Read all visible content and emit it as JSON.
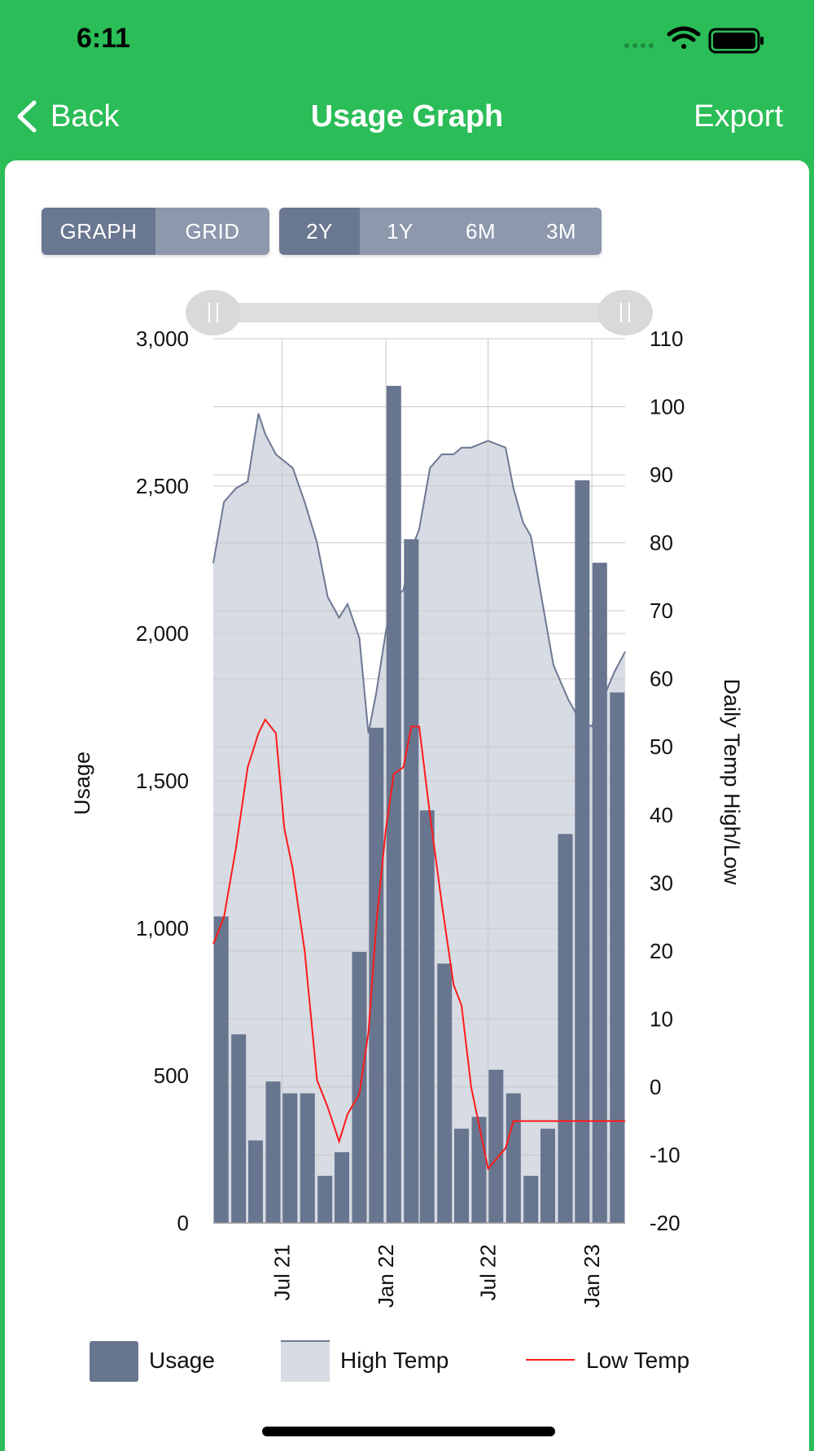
{
  "status": {
    "time": "6:11"
  },
  "nav": {
    "back_label": "Back",
    "title": "Usage Graph",
    "export_label": "Export"
  },
  "view_toggle": [
    {
      "label": "GRAPH",
      "active": true
    },
    {
      "label": "GRID",
      "active": false
    }
  ],
  "range_toggle": [
    {
      "label": "2Y",
      "active": true
    },
    {
      "label": "1Y",
      "active": false
    },
    {
      "label": "6M",
      "active": false
    },
    {
      "label": "3M",
      "active": false
    }
  ],
  "colors": {
    "header_green": "#2bbd57",
    "usage_bar": "#68758f",
    "high_temp_fill": "#d7dbe3",
    "high_temp_line": "#6c7893",
    "low_temp_line": "#ff1a1a"
  },
  "chart_data": {
    "type": "bar",
    "left_axis": {
      "label": "Usage",
      "range": [
        0,
        3000
      ],
      "ticks": [
        0,
        500,
        1000,
        1500,
        2000,
        2500,
        3000
      ],
      "tick_labels": [
        "0",
        "500",
        "1,000",
        "1,500",
        "2,000",
        "2,500",
        "3,000"
      ]
    },
    "right_axis": {
      "label": "Daily Temp High/Low",
      "range": [
        -20,
        110
      ],
      "ticks": [
        -20,
        -10,
        0,
        10,
        20,
        30,
        40,
        50,
        60,
        70,
        80,
        90,
        100,
        110
      ],
      "tick_labels": [
        "-20",
        "-10",
        "0",
        "10",
        "20",
        "30",
        "40",
        "50",
        "60",
        "70",
        "80",
        "90",
        "100",
        "110"
      ]
    },
    "x_ticks": [
      "Jul 21",
      "Jan 22",
      "Jul 22",
      "Jan 23"
    ],
    "x_tick_dates": [
      "2021-07-01",
      "2022-01-01",
      "2022-07-01",
      "2023-01-01"
    ],
    "x_range": [
      "2021-03-01",
      "2023-03-01"
    ],
    "grid": true,
    "legend_position": "bottom",
    "series": [
      {
        "name": "Usage",
        "type": "bar",
        "axis": "left",
        "x": [
          "2021-03-15",
          "2021-04-15",
          "2021-05-15",
          "2021-06-15",
          "2021-07-15",
          "2021-08-15",
          "2021-09-15",
          "2021-10-15",
          "2021-11-15",
          "2021-12-15",
          "2022-01-15",
          "2022-02-15",
          "2022-03-15",
          "2022-04-15",
          "2022-05-15",
          "2022-06-15",
          "2022-07-15",
          "2022-08-15",
          "2022-09-15",
          "2022-10-15",
          "2022-11-15",
          "2022-12-15",
          "2023-01-15",
          "2023-02-15"
        ],
        "values": [
          1040,
          640,
          280,
          480,
          440,
          440,
          160,
          240,
          920,
          1680,
          2840,
          2320,
          1400,
          880,
          320,
          360,
          520,
          440,
          160,
          320,
          1320,
          2520,
          2240,
          1800
        ]
      },
      {
        "name": "High Temp",
        "type": "area",
        "axis": "right",
        "x": [
          "2021-03-01",
          "2021-03-20",
          "2021-04-10",
          "2021-05-01",
          "2021-05-20",
          "2021-06-01",
          "2021-06-20",
          "2021-07-05",
          "2021-07-20",
          "2021-08-10",
          "2021-09-01",
          "2021-09-20",
          "2021-10-10",
          "2021-10-25",
          "2021-11-15",
          "2021-12-01",
          "2021-12-15",
          "2022-01-01",
          "2022-01-15",
          "2022-02-01",
          "2022-02-15",
          "2022-03-01",
          "2022-03-20",
          "2022-04-10",
          "2022-05-01",
          "2022-05-15",
          "2022-06-01",
          "2022-07-01",
          "2022-08-01",
          "2022-08-15",
          "2022-09-01",
          "2022-09-15",
          "2022-10-10",
          "2022-10-25",
          "2022-11-20",
          "2022-12-10",
          "2023-01-01",
          "2023-01-20",
          "2023-02-10",
          "2023-03-01"
        ],
        "values": [
          77,
          86,
          88,
          89,
          99,
          96,
          93,
          92,
          91,
          86,
          80,
          72,
          69,
          71,
          66,
          52,
          58,
          67,
          72,
          73,
          79,
          82,
          91,
          93,
          93,
          94,
          94,
          95,
          94,
          88,
          83,
          81,
          69,
          62,
          57,
          54,
          53,
          57,
          61,
          64
        ]
      },
      {
        "name": "Low Temp",
        "type": "line",
        "axis": "right",
        "x": [
          "2021-03-01",
          "2021-03-20",
          "2021-04-10",
          "2021-05-01",
          "2021-05-20",
          "2021-06-01",
          "2021-06-20",
          "2021-07-05",
          "2021-07-20",
          "2021-08-10",
          "2021-09-01",
          "2021-09-20",
          "2021-10-10",
          "2021-10-25",
          "2021-11-15",
          "2021-12-01",
          "2021-12-15",
          "2022-01-01",
          "2022-01-15",
          "2022-02-01",
          "2022-02-15",
          "2022-03-01",
          "2022-03-20",
          "2022-04-10",
          "2022-05-01",
          "2022-05-15",
          "2022-06-01",
          "2022-07-01",
          "2022-08-01",
          "2022-08-15",
          "2022-09-01",
          "2022-09-15",
          "2022-10-10",
          "2022-10-25",
          "2022-11-20",
          "2022-12-10",
          "2023-01-01",
          "2023-01-20",
          "2023-02-10",
          "2023-03-01"
        ],
        "values": [
          21,
          25,
          35,
          47,
          52,
          54,
          52,
          38,
          32,
          20,
          1,
          -3,
          -8,
          -4,
          -1,
          8,
          24,
          38,
          46,
          47,
          53,
          53,
          40,
          27,
          15,
          12,
          0,
          -12,
          -9,
          -5,
          -5,
          -5,
          -5,
          -5,
          -5,
          -5,
          -5,
          -5,
          -5,
          -5
        ]
      }
    ]
  },
  "legend": [
    {
      "label": "Usage"
    },
    {
      "label": "High Temp"
    },
    {
      "label": "Low Temp"
    }
  ]
}
